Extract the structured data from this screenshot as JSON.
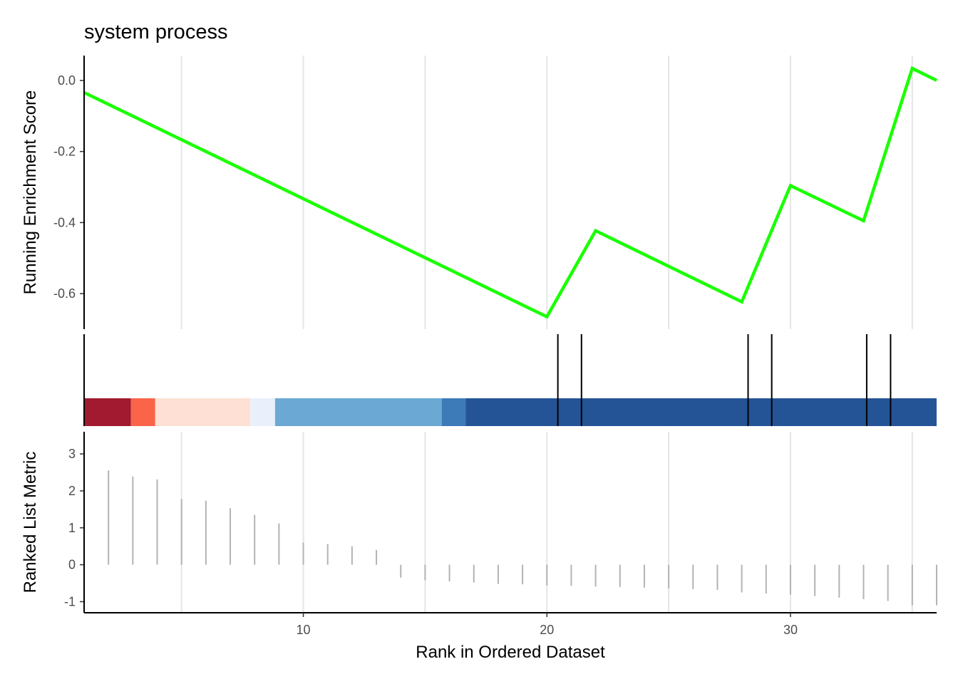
{
  "chart_data": {
    "type": "line",
    "title": "system process",
    "xlabel": "Rank in Ordered Dataset",
    "xlim": [
      1,
      36
    ],
    "x_ticks": [
      10,
      20,
      30
    ],
    "x_tick_labels": [
      "10",
      "20",
      "30"
    ],
    "grid_x": [
      5,
      10,
      15,
      20,
      25,
      30,
      35
    ],
    "colors": {
      "running_score": "#1aff00",
      "metric_bars": "#b3b3b3",
      "grid": "#e5e5e5",
      "hits": "#000000"
    },
    "panels": [
      {
        "name": "running-enrichment-score",
        "ylabel": "Running Enrichment Score",
        "ylim": [
          -0.7,
          0.07
        ],
        "y_ticks": [
          0.0,
          -0.2,
          -0.4,
          -0.6
        ],
        "y_tick_labels": [
          "0.0",
          "-0.2",
          "-0.4",
          "-0.6"
        ],
        "series": [
          {
            "x": [
              1,
              20,
              22,
              28,
              30,
              33,
              35,
              36
            ],
            "values": [
              -0.034,
              -0.665,
              -0.423,
              -0.623,
              -0.296,
              -0.395,
              0.034,
              0.0
            ]
          }
        ]
      },
      {
        "name": "gene-hits",
        "hits": [
          20.45,
          21.42,
          28.26,
          29.23,
          33.13,
          34.11
        ],
        "color_bands": [
          {
            "from": 1,
            "to": 2.92,
            "color": "#a11a2f"
          },
          {
            "from": 2.92,
            "to": 3.92,
            "color": "#fa6449"
          },
          {
            "from": 3.92,
            "to": 7.82,
            "color": "#fee1d4"
          },
          {
            "from": 7.82,
            "to": 8.84,
            "color": "#eaeffc"
          },
          {
            "from": 8.84,
            "to": 15.68,
            "color": "#6ba9d4"
          },
          {
            "from": 15.68,
            "to": 16.66,
            "color": "#3d7bb8"
          },
          {
            "from": 16.66,
            "to": 36,
            "color": "#255496"
          }
        ]
      },
      {
        "name": "ranked-list-metric",
        "ylabel": "Ranked List Metric",
        "ylim": [
          -1.3,
          3.6
        ],
        "y_ticks": [
          3,
          2,
          1,
          0,
          -1
        ],
        "y_tick_labels": [
          "3",
          "2",
          "1",
          "0",
          "-1"
        ],
        "series": [
          {
            "x": [
              2,
              3,
              4,
              5,
              6,
              7,
              8,
              9,
              10,
              11,
              12,
              13,
              14,
              15,
              16,
              17,
              18,
              19,
              20,
              21,
              22,
              23,
              24,
              25,
              26,
              27,
              28,
              29,
              30,
              31,
              32,
              33,
              34,
              35,
              36
            ],
            "values": [
              2.55,
              2.39,
              2.31,
              1.78,
              1.73,
              1.53,
              1.35,
              1.12,
              0.6,
              0.56,
              0.5,
              0.4,
              -0.35,
              -0.42,
              -0.45,
              -0.48,
              -0.52,
              -0.53,
              -0.56,
              -0.57,
              -0.59,
              -0.6,
              -0.62,
              -0.64,
              -0.66,
              -0.68,
              -0.75,
              -0.78,
              -0.81,
              -0.85,
              -0.89,
              -0.93,
              -0.98,
              -1.1,
              -1.1
            ]
          }
        ]
      }
    ]
  }
}
